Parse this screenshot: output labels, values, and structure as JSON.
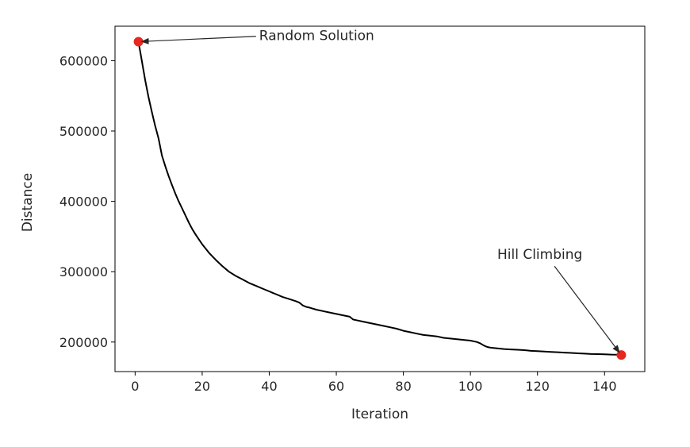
{
  "chart_data": {
    "type": "line",
    "title": "",
    "xlabel": "Iteration",
    "ylabel": "Distance",
    "xlim": [
      -6,
      152
    ],
    "ylim": [
      158000,
      649000
    ],
    "xticks": [
      0,
      20,
      40,
      60,
      80,
      100,
      120,
      140
    ],
    "xtick_labels": [
      "0",
      "20",
      "40",
      "60",
      "80",
      "100",
      "120",
      "140"
    ],
    "yticks": [
      200000,
      300000,
      400000,
      500000,
      600000
    ],
    "ytick_labels": [
      "200000",
      "300000",
      "400000",
      "500000",
      "600000"
    ],
    "grid": false,
    "series": [
      {
        "color": "#000000",
        "x": [
          1,
          2,
          3,
          4,
          5,
          6,
          7,
          8,
          9,
          10,
          11,
          12,
          13,
          14,
          15,
          16,
          17,
          18,
          19,
          20,
          22,
          24,
          26,
          28,
          30,
          32,
          34,
          36,
          38,
          40,
          41,
          42,
          44,
          46,
          48,
          49,
          50,
          51,
          52,
          54,
          56,
          58,
          60,
          62,
          64,
          65,
          66,
          68,
          70,
          72,
          74,
          76,
          78,
          80,
          82,
          84,
          86,
          88,
          90,
          92,
          94,
          96,
          98,
          100,
          102,
          103,
          104,
          105,
          106,
          108,
          110,
          112,
          114,
          116,
          117,
          118,
          120,
          122,
          124,
          126,
          128,
          130,
          132,
          134,
          136,
          138,
          140,
          142,
          144,
          145
        ],
        "y": [
          627000,
          600000,
          572000,
          548000,
          527000,
          507000,
          489000,
          465000,
          450000,
          436000,
          423000,
          411000,
          400000,
          390000,
          380000,
          370000,
          361000,
          353000,
          346000,
          339000,
          327000,
          317000,
          308000,
          300000,
          294000,
          289000,
          284000,
          280000,
          276000,
          272000,
          270000,
          268000,
          264000,
          261000,
          258000,
          256000,
          252000,
          250000,
          249000,
          246000,
          244000,
          242000,
          240000,
          238000,
          236000,
          232000,
          231000,
          229000,
          227000,
          225000,
          223000,
          221000,
          219000,
          216000,
          214000,
          212000,
          210000,
          209000,
          208000,
          206000,
          205000,
          204000,
          203000,
          202000,
          200000,
          198000,
          195000,
          193000,
          192000,
          191000,
          190000,
          189500,
          189000,
          188500,
          188000,
          187500,
          187000,
          186500,
          186000,
          185500,
          185000,
          184500,
          184000,
          183500,
          183000,
          182800,
          182500,
          182200,
          182000,
          181500
        ]
      }
    ],
    "markers": [
      {
        "x": 1,
        "y": 627000,
        "color": "#e8281e"
      },
      {
        "x": 145,
        "y": 181500,
        "color": "#e8281e"
      }
    ],
    "annotations": [
      {
        "text": "Random Solution",
        "x": 1,
        "y": 627000,
        "text_x": 37,
        "text_y": 629000,
        "ha": "left"
      },
      {
        "text": "Hill Climbing",
        "x": 145,
        "y": 181500,
        "text_x": 108,
        "text_y": 318000,
        "ha": "left"
      }
    ]
  }
}
